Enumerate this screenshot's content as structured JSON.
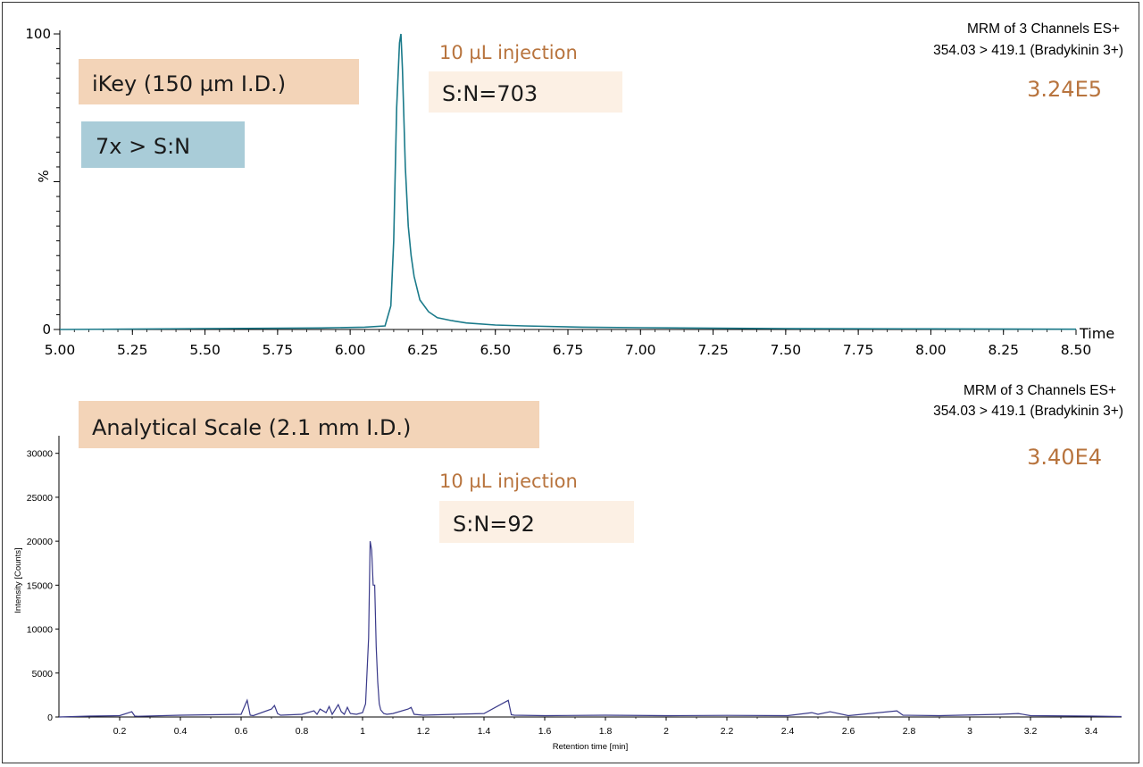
{
  "colors": {
    "box_orange": "#f3d4b8",
    "box_blue": "#a9ccd8",
    "box_cream": "#fcf0e4",
    "accent_orange": "#b8743e",
    "trace_top": "#1a7a8a",
    "trace_bottom": "#3a3a8a",
    "axis": "#000000"
  },
  "top_panel": {
    "header_line1": "MRM of 3 Channels ES+",
    "header_line2": "354.03 > 419.1 (Bradykinin 3+)",
    "intensity": "3.24E5",
    "label_box": "iKey (150 µm I.D.)",
    "ratio_box": "7x > S:N",
    "injection": "10 µL injection",
    "sn_box": "S:N=703"
  },
  "bottom_panel": {
    "header_line1": "MRM of 3 Channels ES+",
    "header_line2": "354.03 > 419.1 (Bradykinin 3+)",
    "intensity": "3.40E4",
    "label_box": "Analytical Scale (2.1 mm I.D.)",
    "injection": "10 µL injection",
    "sn_box": "S:N=92"
  },
  "chart_data": [
    {
      "type": "line",
      "xlabel": "Time",
      "ylabel": "%",
      "xlim": [
        5.0,
        8.5
      ],
      "ylim": [
        0,
        100
      ],
      "x_ticks": [
        "5.00",
        "5.25",
        "5.50",
        "5.75",
        "6.00",
        "6.25",
        "6.50",
        "6.75",
        "7.00",
        "7.25",
        "7.50",
        "7.75",
        "8.00",
        "8.25",
        "8.50"
      ],
      "y_ticks": [
        "0",
        "%",
        "100"
      ],
      "series": [
        {
          "x": [
            5.0,
            5.5,
            5.9,
            6.05,
            6.12,
            6.14,
            6.15,
            6.16,
            6.17,
            6.175,
            6.18,
            6.19,
            6.2,
            6.21,
            6.22,
            6.24,
            6.27,
            6.3,
            6.35,
            6.4,
            6.5,
            6.6,
            6.8,
            7.0,
            7.5,
            8.0,
            8.5
          ],
          "y": [
            0,
            0.3,
            0.5,
            0.8,
            1.2,
            8,
            30,
            75,
            97,
            100,
            88,
            55,
            35,
            25,
            18,
            10,
            6,
            4,
            3,
            2.2,
            1.5,
            1.2,
            0.8,
            0.6,
            0.3,
            0.2,
            0.1
          ]
        }
      ]
    },
    {
      "type": "line",
      "xlabel": "Retention time [min]",
      "ylabel": "Intensity [Counts]",
      "xlim": [
        0,
        3.5
      ],
      "ylim": [
        0,
        32000
      ],
      "x_ticks": [
        "0.2",
        "0.4",
        "0.6",
        "0.8",
        "1",
        "1.2",
        "1.4",
        "1.6",
        "1.8",
        "2",
        "2.2",
        "2.4",
        "2.6",
        "2.8",
        "3",
        "3.2",
        "3.4"
      ],
      "y_ticks": [
        "0",
        "5000",
        "10000",
        "15000",
        "20000",
        "25000",
        "30000"
      ],
      "series": [
        {
          "x": [
            0,
            0.1,
            0.2,
            0.24,
            0.25,
            0.26,
            0.4,
            0.5,
            0.6,
            0.62,
            0.63,
            0.64,
            0.7,
            0.71,
            0.72,
            0.73,
            0.8,
            0.84,
            0.85,
            0.86,
            0.88,
            0.89,
            0.9,
            0.92,
            0.93,
            0.94,
            0.95,
            0.96,
            0.98,
            1.0,
            1.01,
            1.02,
            1.025,
            1.03,
            1.035,
            1.04,
            1.045,
            1.05,
            1.055,
            1.06,
            1.07,
            1.08,
            1.1,
            1.15,
            1.16,
            1.17,
            1.2,
            1.3,
            1.4,
            1.48,
            1.49,
            1.5,
            1.6,
            1.8,
            2.0,
            2.2,
            2.4,
            2.48,
            2.5,
            2.54,
            2.6,
            2.76,
            2.78,
            2.9,
            3.1,
            3.16,
            3.2,
            3.4,
            3.5
          ],
          "y": [
            0,
            100,
            150,
            600,
            100,
            80,
            200,
            250,
            300,
            1900,
            200,
            150,
            900,
            1300,
            400,
            200,
            300,
            700,
            300,
            900,
            500,
            1200,
            300,
            1400,
            600,
            300,
            1100,
            400,
            300,
            500,
            1500,
            9000,
            20000,
            19000,
            15000,
            15000,
            8000,
            4000,
            1500,
            800,
            400,
            300,
            400,
            900,
            1100,
            300,
            200,
            300,
            400,
            1900,
            250,
            200,
            150,
            200,
            150,
            180,
            150,
            500,
            300,
            600,
            150,
            700,
            200,
            150,
            300,
            400,
            150,
            100,
            50
          ]
        }
      ]
    }
  ]
}
